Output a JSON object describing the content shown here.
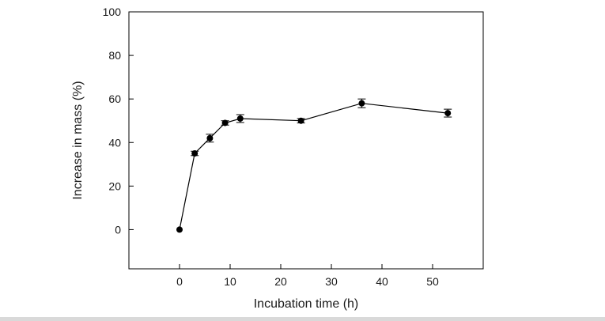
{
  "chart_data": {
    "type": "line",
    "title": "",
    "xlabel": "Incubation time (h)",
    "ylabel": "Increase in mass (%)",
    "xlim": [
      -10,
      60
    ],
    "ylim": [
      -18,
      100
    ],
    "xticks": [
      0,
      10,
      20,
      30,
      40,
      50
    ],
    "yticks": [
      0,
      20,
      40,
      60,
      80,
      100
    ],
    "grid": false,
    "series": [
      {
        "name": "Increase in mass",
        "x": [
          0,
          3,
          6,
          9,
          12,
          24,
          36,
          53
        ],
        "y": [
          0,
          35,
          42,
          49,
          51,
          50,
          58,
          53.5
        ],
        "error": [
          0,
          1,
          1.8,
          1,
          1.8,
          1,
          2,
          1.8
        ]
      }
    ]
  }
}
